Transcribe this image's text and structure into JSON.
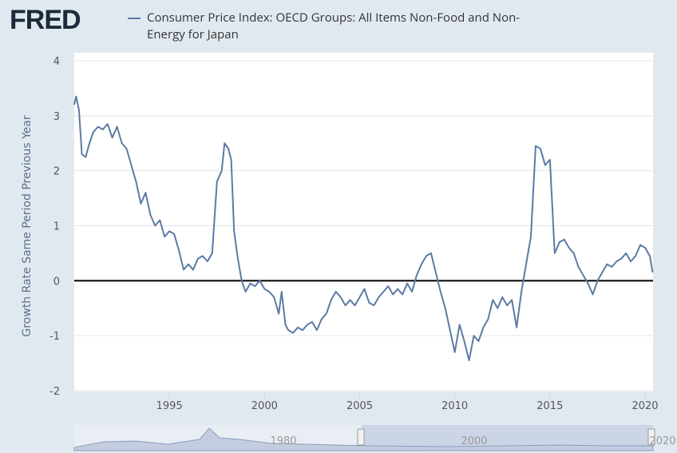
{
  "logo": "FRED",
  "chart_data": {
    "type": "line",
    "y_label": "Growth Rate Same Period Previous Year",
    "xlim": [
      1990,
      2020.42
    ],
    "xticks": [
      1995,
      2000,
      2005,
      2010,
      2015,
      2020
    ],
    "ylim": [
      -2,
      4
    ],
    "yticks": [
      -2,
      -1,
      0,
      1,
      2,
      3,
      4
    ],
    "grid": true,
    "x": [
      1990.0,
      1990.1,
      1990.25,
      1990.4,
      1990.6,
      1990.8,
      1991.0,
      1991.25,
      1991.5,
      1991.75,
      1992.0,
      1992.25,
      1992.5,
      1992.75,
      1993.0,
      1993.25,
      1993.5,
      1993.75,
      1994.0,
      1994.25,
      1994.5,
      1994.75,
      1995.0,
      1995.25,
      1995.5,
      1995.75,
      1996.0,
      1996.25,
      1996.5,
      1996.75,
      1997.0,
      1997.25,
      1997.5,
      1997.75,
      1997.9,
      1998.1,
      1998.25,
      1998.4,
      1998.6,
      1998.8,
      1999.0,
      1999.25,
      1999.5,
      1999.75,
      2000.0,
      2000.25,
      2000.5,
      2000.75,
      2000.9,
      2001.1,
      2001.25,
      2001.5,
      2001.75,
      2002.0,
      2002.25,
      2002.5,
      2002.75,
      2003.0,
      2003.25,
      2003.5,
      2003.75,
      2004.0,
      2004.25,
      2004.5,
      2004.75,
      2005.0,
      2005.25,
      2005.5,
      2005.75,
      2006.0,
      2006.25,
      2006.5,
      2006.75,
      2007.0,
      2007.25,
      2007.5,
      2007.75,
      2008.0,
      2008.25,
      2008.5,
      2008.75,
      2009.0,
      2009.25,
      2009.5,
      2009.75,
      2010.0,
      2010.25,
      2010.5,
      2010.75,
      2011.0,
      2011.25,
      2011.5,
      2011.75,
      2012.0,
      2012.25,
      2012.5,
      2012.75,
      2013.0,
      2013.25,
      2013.5,
      2013.75,
      2014.0,
      2014.25,
      2014.5,
      2014.75,
      2015.0,
      2015.25,
      2015.5,
      2015.75,
      2016.0,
      2016.25,
      2016.5,
      2016.75,
      2017.0,
      2017.25,
      2017.5,
      2017.75,
      2018.0,
      2018.25,
      2018.5,
      2018.75,
      2019.0,
      2019.25,
      2019.5,
      2019.75,
      2020.0,
      2020.25,
      2020.4
    ],
    "series": [
      {
        "name": "Consumer Price Index: OECD Groups: All Items Non-Food and Non-Energy for Japan",
        "color": "#5b7ba4",
        "values": [
          3.2,
          3.35,
          3.1,
          2.3,
          2.25,
          2.5,
          2.7,
          2.8,
          2.75,
          2.85,
          2.6,
          2.8,
          2.5,
          2.4,
          2.1,
          1.8,
          1.4,
          1.6,
          1.2,
          1.0,
          1.1,
          0.8,
          0.9,
          0.85,
          0.55,
          0.2,
          0.3,
          0.2,
          0.4,
          0.45,
          0.35,
          0.5,
          1.8,
          2.0,
          2.5,
          2.4,
          2.2,
          0.9,
          0.4,
          0.0,
          -0.2,
          -0.05,
          -0.1,
          0.0,
          -0.15,
          -0.2,
          -0.3,
          -0.6,
          -0.2,
          -0.8,
          -0.9,
          -0.95,
          -0.85,
          -0.9,
          -0.8,
          -0.75,
          -0.9,
          -0.7,
          -0.6,
          -0.35,
          -0.2,
          -0.3,
          -0.45,
          -0.35,
          -0.45,
          -0.3,
          -0.15,
          -0.4,
          -0.45,
          -0.3,
          -0.2,
          -0.1,
          -0.25,
          -0.15,
          -0.25,
          -0.05,
          -0.2,
          0.1,
          0.3,
          0.45,
          0.5,
          0.15,
          -0.2,
          -0.5,
          -0.9,
          -1.3,
          -0.8,
          -1.1,
          -1.45,
          -1.0,
          -1.1,
          -0.85,
          -0.7,
          -0.35,
          -0.5,
          -0.3,
          -0.45,
          -0.35,
          -0.85,
          -0.2,
          0.3,
          0.8,
          2.45,
          2.4,
          2.1,
          2.2,
          0.5,
          0.7,
          0.75,
          0.6,
          0.5,
          0.25,
          0.1,
          -0.05,
          -0.25,
          0.0,
          0.15,
          0.3,
          0.25,
          0.35,
          0.4,
          0.5,
          0.35,
          0.45,
          0.65,
          0.6,
          0.45,
          0.15
        ]
      }
    ]
  },
  "navigator": {
    "labels": [
      "1980",
      "2000",
      "2020"
    ]
  }
}
